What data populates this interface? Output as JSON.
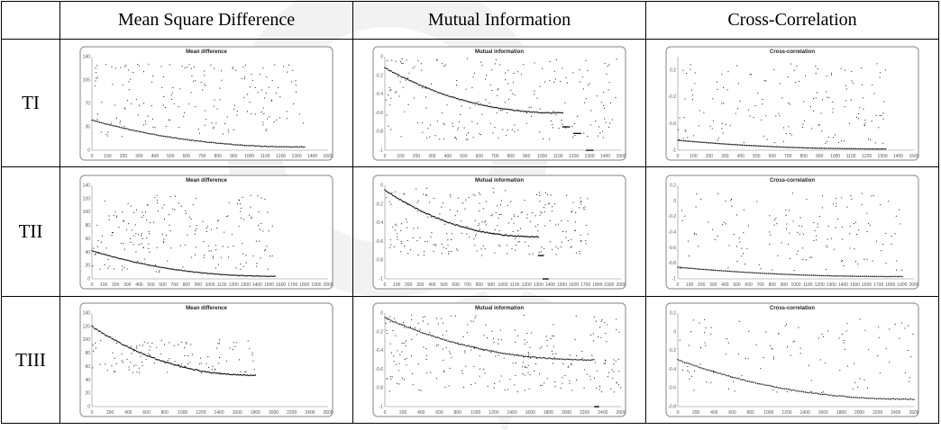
{
  "table": {
    "columns": [
      "Mean Square Difference",
      "Mutual Information",
      "Cross-Correlation"
    ],
    "rows": [
      "TI",
      "TII",
      "TIII"
    ]
  },
  "chart_data": [
    {
      "type": "scatter",
      "row": "TI",
      "column": "Mean Square Difference",
      "title": "Mean difference",
      "yticks": [
        "0",
        "35",
        "70",
        "105",
        "140"
      ],
      "ylim": [
        0,
        140
      ],
      "xticks": [
        "0",
        "100",
        "200",
        "300",
        "400",
        "500",
        "600",
        "700",
        "800",
        "900",
        "1000",
        "1100",
        "1200",
        "1300",
        "1400",
        "1500"
      ],
      "xlim": [
        0,
        1500
      ],
      "baseline": {
        "start": 45,
        "end": 5,
        "n_end": 1350,
        "drops": []
      },
      "scatter_points": {
        "n": 180,
        "x_max": 1350,
        "y_min": 20,
        "y_max": 130
      }
    },
    {
      "type": "scatter",
      "row": "TI",
      "column": "Mutual Information",
      "title": "Mutual information",
      "yticks": [
        "0",
        "-0.2",
        "-0.4",
        "-0.6",
        "-0.8",
        "-1"
      ],
      "ylim": [
        -1,
        0
      ],
      "xticks": [
        "0",
        "100",
        "200",
        "300",
        "400",
        "500",
        "600",
        "700",
        "800",
        "900",
        "1000",
        "1100",
        "1200",
        "1300",
        "1400",
        "1500"
      ],
      "xlim": [
        0,
        1500
      ],
      "baseline": {
        "start": -0.12,
        "end": -0.6,
        "n_end": 1130,
        "drops": [
          {
            "x": 1130,
            "y": -0.75
          },
          {
            "x": 1200,
            "y": -0.82
          },
          {
            "x": 1280,
            "y": -1.0
          }
        ]
      },
      "scatter_points": {
        "n": 220,
        "x_max": 1480,
        "y_min": -0.9,
        "y_max": -0.02
      }
    },
    {
      "type": "scatter",
      "row": "TI",
      "column": "Cross-Correlation",
      "title": "Cross-correlation",
      "yticks": [
        "0.2",
        "-0.2",
        "-0.6",
        "-1"
      ],
      "ylim": [
        -1,
        0.4
      ],
      "xticks": [
        "0",
        "100",
        "200",
        "300",
        "400",
        "500",
        "600",
        "700",
        "800",
        "900",
        "1000",
        "1100",
        "1200",
        "1300",
        "1400",
        "1500"
      ],
      "xlim": [
        0,
        1500
      ],
      "baseline": {
        "start": -0.85,
        "end": -0.98,
        "n_end": 1320,
        "drops": []
      },
      "scatter_points": {
        "n": 160,
        "x_max": 1320,
        "y_min": -0.9,
        "y_max": 0.3
      }
    },
    {
      "type": "scatter",
      "row": "TII",
      "column": "Mean Square Difference",
      "title": "Mean difference",
      "yticks": [
        "0",
        "20",
        "40",
        "60",
        "80",
        "100",
        "120",
        "140"
      ],
      "ylim": [
        0,
        140
      ],
      "xticks": [
        "0",
        "100",
        "200",
        "300",
        "400",
        "500",
        "600",
        "700",
        "800",
        "900",
        "1000",
        "1100",
        "1200",
        "1300",
        "1400",
        "1500",
        "1600",
        "1700",
        "1800",
        "1900",
        "2000"
      ],
      "xlim": [
        0,
        2000
      ],
      "baseline": {
        "start": 42,
        "end": 4,
        "n_end": 1550,
        "drops": []
      },
      "scatter_points": {
        "n": 200,
        "x_max": 1550,
        "y_min": 10,
        "y_max": 125
      }
    },
    {
      "type": "scatter",
      "row": "TII",
      "column": "Mutual Information",
      "title": "Mutual information",
      "yticks": [
        "0",
        "-0.2",
        "-0.4",
        "-0.6",
        "-0.8",
        "-1"
      ],
      "ylim": [
        -1,
        0
      ],
      "xticks": [
        "0",
        "100",
        "200",
        "300",
        "400",
        "500",
        "600",
        "700",
        "800",
        "900",
        "1000",
        "1100",
        "1200",
        "1300",
        "1400",
        "1500",
        "1600",
        "1700",
        "1800",
        "1900",
        "2000"
      ],
      "xlim": [
        0,
        2000
      ],
      "baseline": {
        "start": -0.05,
        "end": -0.55,
        "n_end": 1300,
        "drops": [
          {
            "x": 1300,
            "y": -0.75
          },
          {
            "x": 1340,
            "y": -1.0
          }
        ]
      },
      "scatter_points": {
        "n": 240,
        "x_max": 1720,
        "y_min": -0.75,
        "y_max": -0.03
      }
    },
    {
      "type": "scatter",
      "row": "TII",
      "column": "Cross-Correlation",
      "title": "Cross-correlation",
      "yticks": [
        "0.2",
        "0",
        "-0.2",
        "-0.4",
        "-0.6",
        "-0.8",
        "-1"
      ],
      "ylim": [
        -1,
        0.2
      ],
      "xticks": [
        "0",
        "100",
        "200",
        "300",
        "400",
        "500",
        "600",
        "700",
        "800",
        "900",
        "1000",
        "1100",
        "1200",
        "1300",
        "1400",
        "1500",
        "1600",
        "1700",
        "1800",
        "1900",
        "2000"
      ],
      "xlim": [
        0,
        2000
      ],
      "baseline": {
        "start": -0.85,
        "end": -0.97,
        "n_end": 1900,
        "drops": []
      },
      "scatter_points": {
        "n": 150,
        "x_max": 1900,
        "y_min": -0.9,
        "y_max": 0.1
      }
    },
    {
      "type": "scatter",
      "row": "TIII",
      "column": "Mean Square Difference",
      "title": "Mean difference",
      "yticks": [
        "0",
        "20",
        "40",
        "60",
        "80",
        "100",
        "120",
        "140"
      ],
      "ylim": [
        0,
        140
      ],
      "xticks": [
        "0",
        "200",
        "400",
        "600",
        "800",
        "1000",
        "1200",
        "1400",
        "1600",
        "1800",
        "2000",
        "2200",
        "2400",
        "2600"
      ],
      "xlim": [
        0,
        2600
      ],
      "baseline": {
        "start": 120,
        "end": 47,
        "n_end": 1800,
        "drops": []
      },
      "scatter_points": {
        "n": 110,
        "x_max": 1800,
        "y_min": 50,
        "y_max": 100
      }
    },
    {
      "type": "scatter",
      "row": "TIII",
      "column": "Mutual Information",
      "title": "Mutual information",
      "yticks": [
        "0",
        "-0.2",
        "-0.4",
        "-0.6",
        "-0.8",
        "-1"
      ],
      "ylim": [
        -1,
        0
      ],
      "xticks": [
        "0",
        "200",
        "400",
        "600",
        "800",
        "1000",
        "1200",
        "1400",
        "1600",
        "1800",
        "2000",
        "2200",
        "2400",
        "2600"
      ],
      "xlim": [
        0,
        2600
      ],
      "baseline": {
        "start": -0.05,
        "end": -0.5,
        "n_end": 2300,
        "drops": [
          {
            "x": 2310,
            "y": -1.0
          }
        ]
      },
      "scatter_points": {
        "n": 260,
        "x_max": 2600,
        "y_min": -0.85,
        "y_max": -0.02
      }
    },
    {
      "type": "scatter",
      "row": "TIII",
      "column": "Cross-Correlation",
      "title": "Cross-correlation",
      "yticks": [
        "0.2",
        "0",
        "-0.2",
        "-0.4",
        "-0.6",
        "-0.8"
      ],
      "ylim": [
        -0.8,
        0.2
      ],
      "xticks": [
        "0",
        "200",
        "400",
        "600",
        "800",
        "1000",
        "1200",
        "1400",
        "1600",
        "1800",
        "2000",
        "2200",
        "2400",
        "2600"
      ],
      "xlim": [
        0,
        2600
      ],
      "baseline": {
        "start": -0.3,
        "end": -0.72,
        "n_end": 2600,
        "drops": []
      },
      "scatter_points": {
        "n": 110,
        "x_max": 2600,
        "y_min": -0.65,
        "y_max": 0.15
      }
    }
  ]
}
